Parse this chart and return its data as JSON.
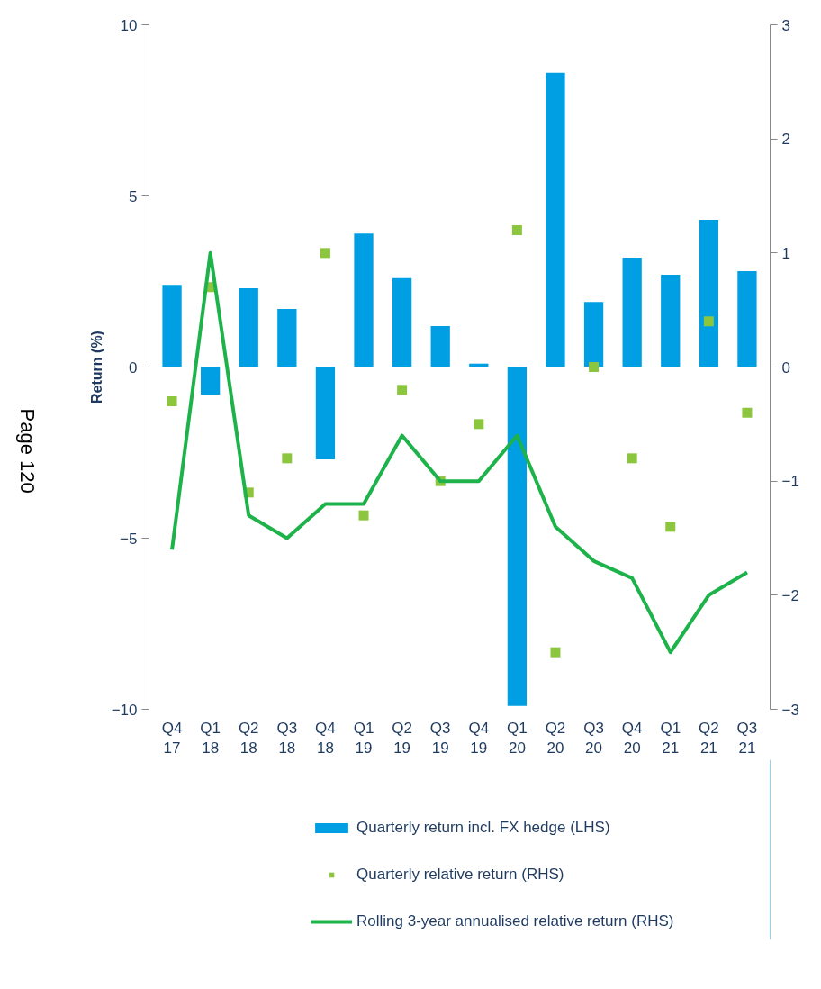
{
  "chart_data": {
    "type": "bar",
    "ylabel": "Return (%)",
    "categories": [
      "Q4\n17",
      "Q1\n18",
      "Q2\n18",
      "Q3\n18",
      "Q4\n18",
      "Q1\n19",
      "Q2\n19",
      "Q3\n19",
      "Q4\n19",
      "Q1\n20",
      "Q2\n20",
      "Q3\n20",
      "Q4\n20",
      "Q1\n21",
      "Q2\n21",
      "Q3\n21"
    ],
    "series": [
      {
        "name": "Quarterly return incl. FX hedge (LHS)",
        "color": "#009fe3",
        "values": [
          2.4,
          -0.8,
          2.3,
          1.7,
          -2.7,
          3.9,
          2.6,
          1.2,
          0.1,
          -9.9,
          8.6,
          1.9,
          3.2,
          2.7,
          4.3,
          2.8
        ]
      },
      {
        "name": "Quarterly relative return (RHS)",
        "type": "scatter",
        "axis": "y2",
        "marker": "square",
        "color": "#8cc63f",
        "values": [
          -0.3,
          0.7,
          -1.1,
          -0.8,
          1.0,
          -1.3,
          -0.2,
          -1.0,
          -0.5,
          1.2,
          -2.5,
          0.0,
          -0.8,
          -1.4,
          0.4,
          -0.4
        ]
      },
      {
        "name": "Rolling 3-year annualised relative return (RHS)",
        "type": "line",
        "axis": "y2",
        "color": "#1db34a",
        "values": [
          -1.6,
          1.0,
          -1.3,
          -1.5,
          -1.2,
          -1.2,
          -0.6,
          -1.0,
          -1.0,
          -0.6,
          -1.4,
          -1.7,
          -1.85,
          -2.5,
          -2.0,
          -1.8
        ]
      }
    ],
    "ylim": [
      -10,
      10
    ],
    "yticks": [
      -10,
      -5,
      0,
      5,
      10
    ],
    "y2lim": [
      -3,
      3
    ],
    "y2ticks": [
      -3,
      -2,
      -1,
      0,
      1,
      2,
      3
    ],
    "grid": false,
    "legend": "bottom",
    "annotations": [
      "Page 120"
    ]
  }
}
